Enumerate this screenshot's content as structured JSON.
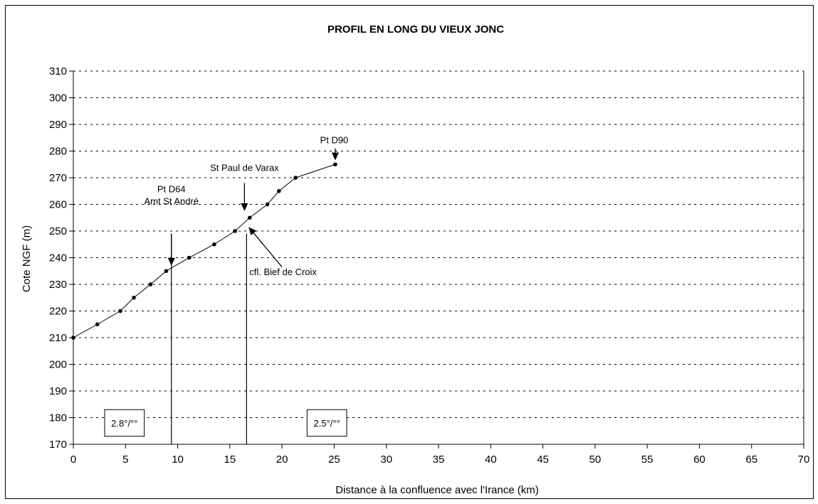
{
  "chart_data": {
    "type": "line",
    "title": "PROFIL EN LONG DU VIEUX JONC",
    "xlabel": "Distance à la confluence avec l'Irance (km)",
    "ylabel": "Cote NGF (m)",
    "xlim": [
      0,
      70
    ],
    "ylim": [
      170,
      310
    ],
    "x_ticks": [
      0,
      5,
      10,
      15,
      20,
      25,
      30,
      35,
      40,
      45,
      50,
      55,
      60,
      65,
      70
    ],
    "y_ticks": [
      170,
      180,
      190,
      200,
      210,
      220,
      230,
      240,
      250,
      260,
      270,
      280,
      290,
      300,
      310
    ],
    "grid": "horizontal dashed",
    "legend": "none",
    "series": [
      {
        "color": "#000000",
        "x": [
          0,
          2.3,
          4.5,
          5.8,
          7.4,
          8.9,
          11.1,
          13.5,
          15.5,
          16.9,
          18.6,
          19.7,
          21.3,
          25.1
        ],
        "y": [
          210,
          215,
          220,
          225,
          230,
          235,
          240,
          245,
          250,
          255,
          260,
          265,
          270,
          275
        ]
      }
    ],
    "vlines": [
      9.4,
      16.6
    ],
    "annotations": [
      {
        "lines": [
          "Pt D90"
        ],
        "text_at": [
          25,
          283
        ],
        "arrow_from": [
          25.1,
          281
        ],
        "arrow_to": [
          25.1,
          276.5
        ]
      },
      {
        "lines": [
          "St Paul de Varax"
        ],
        "text_at": [
          16.4,
          272.5
        ],
        "arrow_from": [
          16.4,
          268
        ],
        "arrow_to": [
          16.4,
          257.5
        ]
      },
      {
        "lines": [
          "Pt D64",
          "Amt St André"
        ],
        "text_at": [
          9.4,
          264.5
        ],
        "arrow_from": [
          9.4,
          249
        ],
        "arrow_to": [
          9.4,
          237
        ]
      },
      {
        "lines": [
          "cfl. Bief de Croix"
        ],
        "text_at": [
          20.1,
          233.5
        ],
        "arrow_from": [
          20,
          236.5
        ],
        "arrow_to": [
          16.8,
          251.5
        ]
      }
    ],
    "boxes": [
      {
        "label": "2.8°/°°",
        "x_range": [
          3,
          6.8
        ],
        "y_range": [
          173,
          183
        ]
      },
      {
        "label": "2.5°/°°",
        "x_range": [
          22.4,
          26.2
        ],
        "y_range": [
          173,
          183
        ]
      }
    ]
  }
}
